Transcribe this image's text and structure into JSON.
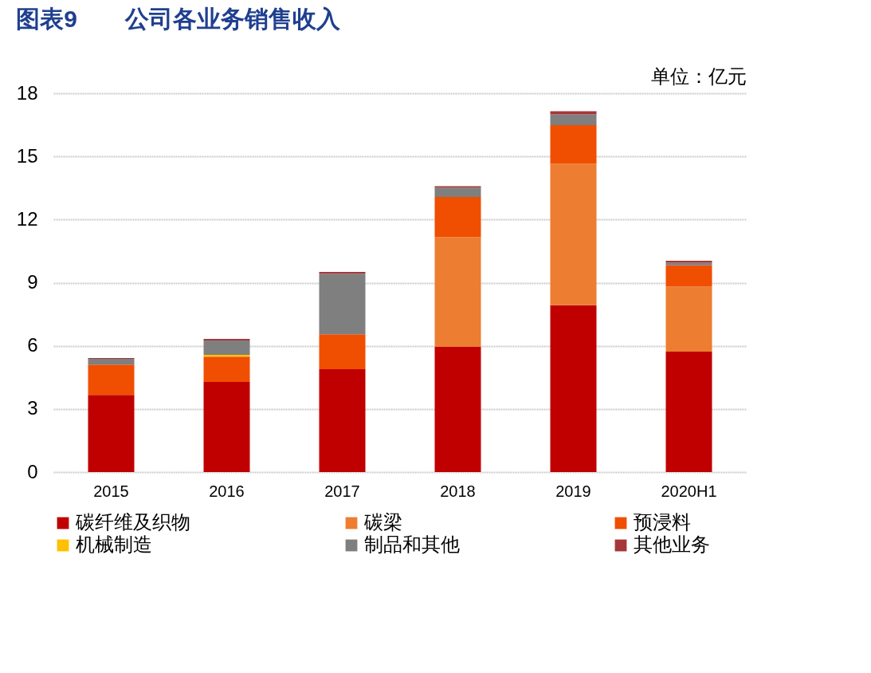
{
  "chart_data": {
    "type": "bar",
    "title": "图表9　　公司各业务销售收入",
    "stacked": true,
    "categories": [
      "2015",
      "2016",
      "2017",
      "2018",
      "2019",
      "2020H1"
    ],
    "series": [
      {
        "name": "碳纤维及织物",
        "color": "#c00000",
        "values": [
          3.67,
          4.28,
          4.89,
          5.95,
          7.93,
          5.72
        ]
      },
      {
        "name": "碳梁",
        "color": "#ed7d31",
        "values": [
          null,
          null,
          null,
          5.22,
          6.73,
          3.09
        ]
      },
      {
        "name": "预浸料",
        "color": "#f04e00",
        "values": [
          1.44,
          1.21,
          1.66,
          1.9,
          1.82,
          1.01
        ]
      },
      {
        "name": "机械制造",
        "color": "#ffc000",
        "values": [
          null,
          0.08,
          null,
          null,
          null,
          null
        ]
      },
      {
        "name": "制品和其他",
        "color": "#7f7f7f",
        "values": [
          0.27,
          0.68,
          2.88,
          0.45,
          0.52,
          0.13
        ]
      },
      {
        "name": "其他业务",
        "color": "#a5373a",
        "values": [
          0.04,
          0.08,
          0.08,
          0.07,
          0.15,
          0.09
        ]
      }
    ],
    "ylim": [
      0,
      18
    ],
    "yticks": [
      0,
      3,
      6,
      9,
      12,
      15,
      18
    ],
    "grid": "y",
    "legend": "bottom",
    "annotations": [
      "单位：亿元"
    ]
  }
}
